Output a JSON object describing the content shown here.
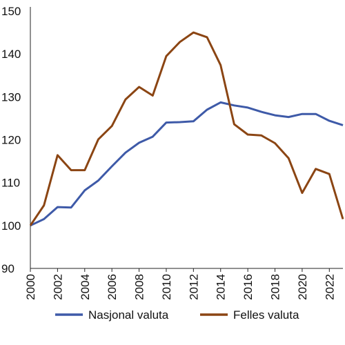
{
  "chart_data": {
    "type": "line",
    "title": "",
    "xlabel": "",
    "ylabel": "",
    "x": [
      2000,
      2001,
      2002,
      2003,
      2004,
      2005,
      2006,
      2007,
      2008,
      2009,
      2010,
      2011,
      2012,
      2013,
      2014,
      2015,
      2016,
      2017,
      2018,
      2019,
      2020,
      2021,
      2022,
      2023
    ],
    "xlim": [
      2000,
      2023
    ],
    "ylim": [
      90,
      150
    ],
    "yticks": [
      90,
      100,
      110,
      120,
      130,
      140,
      150
    ],
    "xticks": [
      2000,
      2002,
      2004,
      2006,
      2008,
      2010,
      2012,
      2014,
      2016,
      2018,
      2020,
      2022
    ],
    "grid": false,
    "legend_position": "bottom",
    "series": [
      {
        "name": "Nasjonal valuta",
        "color": "#3e5aa8",
        "values": [
          100,
          101.5,
          104.3,
          104.2,
          108.2,
          110.5,
          113.8,
          117.0,
          119.3,
          120.7,
          124.0,
          124.1,
          124.3,
          127.0,
          128.7,
          128.0,
          127.5,
          126.5,
          125.7,
          125.3,
          126.0,
          126.0,
          124.4,
          123.4
        ]
      },
      {
        "name": "Felles valuta",
        "color": "#8b4513",
        "values": [
          100,
          104.7,
          116.4,
          112.9,
          112.9,
          120.1,
          123.2,
          129.4,
          132.3,
          130.3,
          139.5,
          142.8,
          145.0,
          143.9,
          137.4,
          123.6,
          121.2,
          121.0,
          119.2,
          115.7,
          107.6,
          113.2,
          112.0,
          101.5
        ]
      }
    ]
  }
}
